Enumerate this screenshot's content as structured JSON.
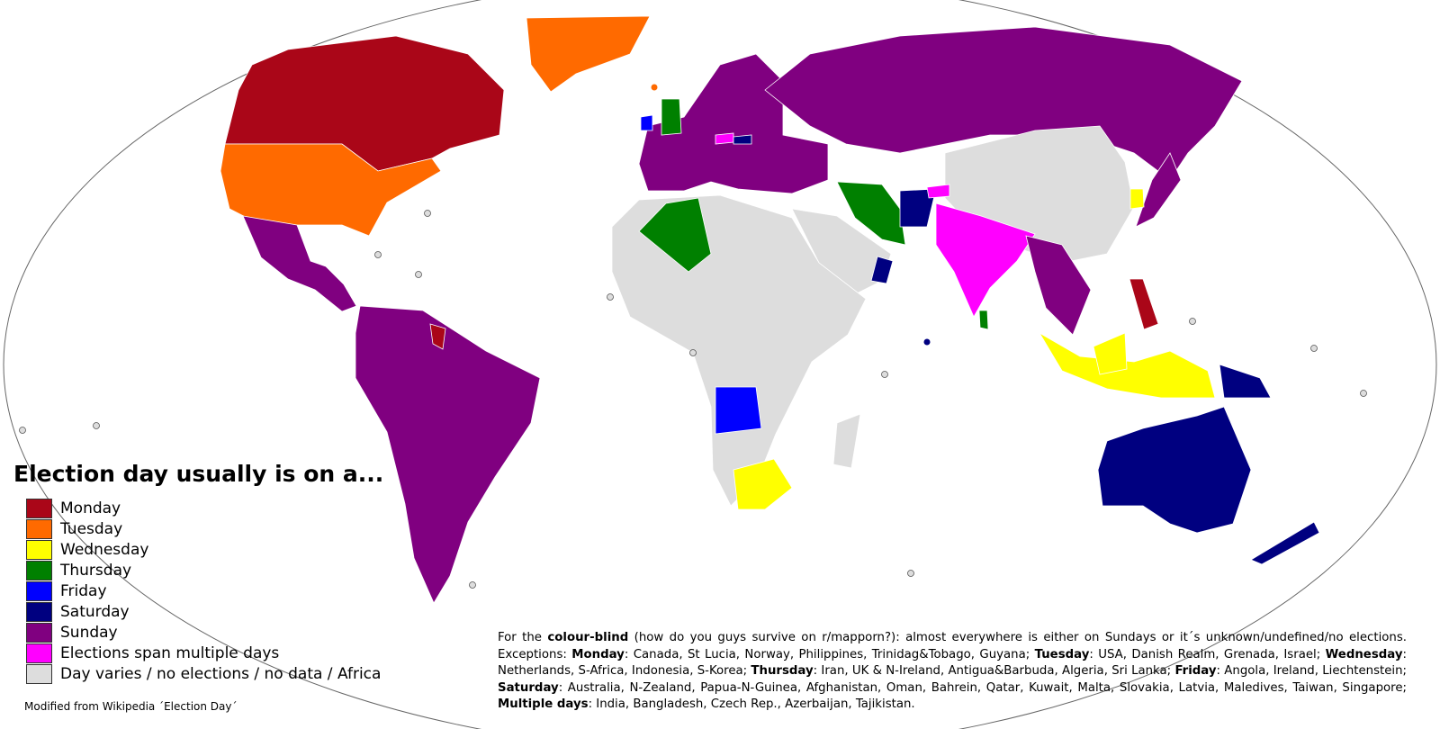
{
  "map": {
    "title": "Election day usually is on a...",
    "legend": [
      {
        "label": "Monday",
        "color": "#aa0618"
      },
      {
        "label": "Tuesday",
        "color": "#ff6a00"
      },
      {
        "label": "Wednesday",
        "color": "#ffff00"
      },
      {
        "label": "Thursday",
        "color": "#008000"
      },
      {
        "label": "Friday",
        "color": "#0000ff"
      },
      {
        "label": "Saturday",
        "color": "#000080"
      },
      {
        "label": "Sunday",
        "color": "#800080"
      },
      {
        "label": "Elections span multiple days",
        "color": "#ff00ff"
      },
      {
        "label": "Day varies / no elections / no data / Africa",
        "color": "#dddddd"
      }
    ],
    "credit": "Modified from Wikipedia ´Election Day´",
    "note": {
      "prefix": "For the",
      "highlight": "colour-blind",
      "intro": "(how do you guys survive on r/mapporn?): almost everywhere is either on Sundays or it´s unknown/undefined/no elections. Exceptions:",
      "exceptions": [
        {
          "day": "Monday",
          "countries": ": Canada, St Lucia, Norway, Philippines, Trinidag&Tobago, Guyana;"
        },
        {
          "day": "Tuesday",
          "countries": ": USA, Danish Realm, Grenada, Israel;"
        },
        {
          "day": "Wednesday",
          "countries": ": Netherlands, S-Africa, Indonesia, S-Korea;"
        },
        {
          "day": "Thursday",
          "countries": ": Iran, UK & N-Ireland, Antigua&Barbuda, Algeria, Sri Lanka;"
        },
        {
          "day": "Friday",
          "countries": ": Angola, Ireland, Liechtenstein;"
        },
        {
          "day": "Saturday",
          "countries": ": Australia, N-Zealand, Papua-N-Guinea, Afghanistan, Oman, Bahrein, Qatar, Kuwait, Malta, Slovakia, Latvia, Maledives, Taiwan, Singapore;"
        },
        {
          "day": "Multiple days",
          "countries": ": India, Bangladesh, Czech Rep., Azerbaijan, Tajikistan."
        }
      ]
    }
  }
}
